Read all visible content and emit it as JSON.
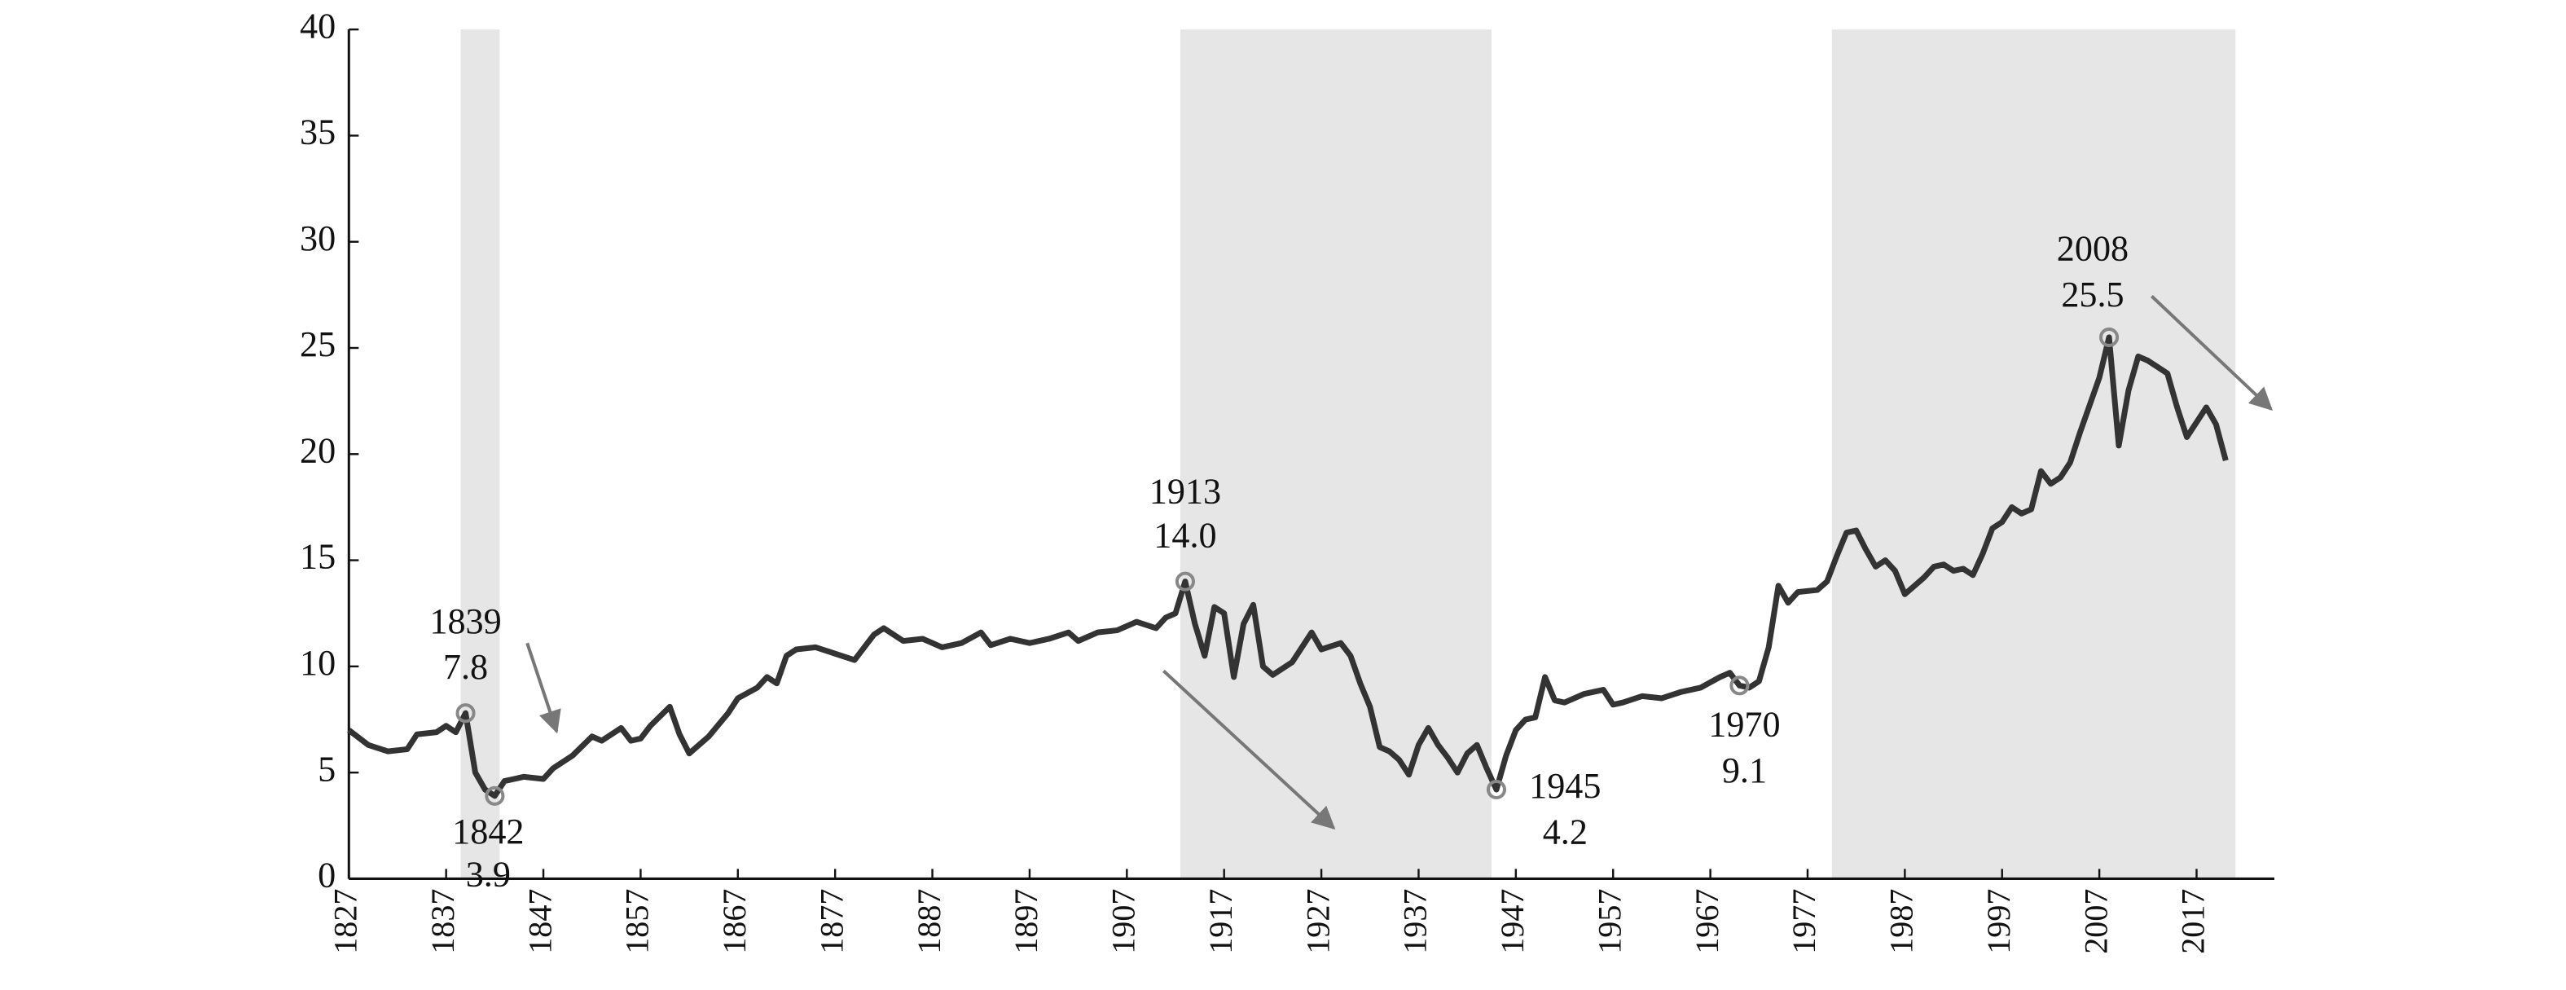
{
  "chart_data": {
    "type": "line",
    "x": [
      1827,
      1829,
      1831,
      1833,
      1834,
      1836,
      1837,
      1838,
      1839,
      1840,
      1841,
      1842,
      1843,
      1845,
      1847,
      1848,
      1850,
      1852,
      1853,
      1855,
      1856,
      1857,
      1858,
      1860,
      1861,
      1862,
      1864,
      1866,
      1867,
      1869,
      1870,
      1871,
      1872,
      1873,
      1875,
      1877,
      1879,
      1881,
      1882,
      1884,
      1886,
      1888,
      1890,
      1892,
      1893,
      1895,
      1897,
      1899,
      1901,
      1902,
      1904,
      1906,
      1908,
      1910,
      1911,
      1912,
      1913,
      1914,
      1915,
      1916,
      1917,
      1918,
      1919,
      1920,
      1921,
      1922,
      1924,
      1926,
      1927,
      1929,
      1930,
      1931,
      1932,
      1933,
      1934,
      1935,
      1936,
      1937,
      1938,
      1939,
      1940,
      1941,
      1942,
      1943,
      1944,
      1945,
      1946,
      1947,
      1948,
      1949,
      1950,
      1951,
      1952,
      1954,
      1956,
      1957,
      1958,
      1960,
      1962,
      1964,
      1966,
      1968,
      1969,
      1970,
      1971,
      1972,
      1973,
      1974,
      1975,
      1976,
      1978,
      1979,
      1980,
      1981,
      1982,
      1983,
      1984,
      1985,
      1986,
      1987,
      1988,
      1989,
      1990,
      1991,
      1992,
      1993,
      1994,
      1995,
      1996,
      1997,
      1998,
      1999,
      2000,
      2001,
      2002,
      2003,
      2004,
      2005,
      2006,
      2007,
      2008,
      2009,
      2010,
      2011,
      2012,
      2013,
      2014,
      2015,
      2016,
      2017,
      2018,
      2019,
      2020
    ],
    "series": [
      {
        "color": "#333333",
        "values": [
          7.0,
          6.3,
          6.0,
          6.1,
          6.8,
          6.9,
          7.2,
          6.9,
          7.8,
          5.0,
          4.2,
          3.9,
          4.6,
          4.8,
          4.7,
          5.2,
          5.8,
          6.7,
          6.5,
          7.1,
          6.5,
          6.6,
          7.2,
          8.1,
          6.8,
          5.9,
          6.7,
          7.8,
          8.5,
          9.0,
          9.5,
          9.2,
          10.5,
          10.8,
          10.9,
          10.6,
          10.3,
          11.5,
          11.8,
          11.2,
          11.3,
          10.9,
          11.1,
          11.6,
          11.0,
          11.3,
          11.1,
          11.3,
          11.6,
          11.2,
          11.6,
          11.7,
          12.1,
          11.8,
          12.3,
          12.5,
          14.0,
          12.0,
          10.5,
          12.8,
          12.5,
          9.5,
          12.0,
          12.9,
          10.0,
          9.6,
          10.2,
          11.6,
          10.8,
          11.1,
          10.5,
          9.2,
          8.1,
          6.2,
          6.0,
          5.6,
          4.9,
          6.3,
          7.1,
          6.3,
          5.7,
          5.0,
          5.9,
          6.3,
          5.2,
          4.2,
          5.8,
          7.0,
          7.5,
          7.6,
          9.5,
          8.4,
          8.3,
          8.7,
          8.9,
          8.2,
          8.3,
          8.6,
          8.5,
          8.8,
          9.0,
          9.5,
          9.7,
          9.1,
          9.0,
          9.3,
          10.9,
          13.8,
          13.0,
          13.5,
          13.6,
          14.0,
          15.2,
          16.3,
          16.4,
          15.5,
          14.7,
          15.0,
          14.5,
          13.4,
          13.8,
          14.2,
          14.7,
          14.8,
          14.5,
          14.6,
          14.3,
          15.3,
          16.5,
          16.8,
          17.5,
          17.2,
          17.4,
          19.2,
          18.6,
          18.9,
          19.6,
          21.0,
          22.3,
          23.6,
          25.5,
          20.4,
          23.0,
          24.6,
          24.4,
          24.1,
          23.8,
          22.2,
          20.8,
          21.5,
          22.2,
          21.4,
          19.7
        ]
      }
    ],
    "xlim": [
      1827,
      2025
    ],
    "xticks": [
      1827,
      1837,
      1847,
      1857,
      1867,
      1877,
      1887,
      1897,
      1907,
      1917,
      1927,
      1937,
      1947,
      1957,
      1967,
      1977,
      1987,
      1997,
      2007,
      2017
    ],
    "ylim": [
      0,
      40
    ],
    "yticks": [
      0,
      5,
      10,
      15,
      20,
      25,
      30,
      35,
      40
    ],
    "shaded_periods": [
      [
        1838.5,
        1842.5
      ],
      [
        1912.5,
        1944.5
      ],
      [
        1979.5,
        2021
      ]
    ],
    "shade_color": "#e6e6e6",
    "annotations": [
      {
        "x": 1839,
        "y": 7.8,
        "labels": [
          "1839",
          "7.8"
        ]
      },
      {
        "x": 1842,
        "y": 3.9,
        "labels": [
          "1842",
          "3.9"
        ]
      },
      {
        "x": 1913,
        "y": 14.0,
        "labels": [
          "1913",
          "14.0"
        ]
      },
      {
        "x": 1945,
        "y": 4.2,
        "labels": [
          "1945",
          "4.2"
        ]
      },
      {
        "x": 1970,
        "y": 9.1,
        "labels": [
          "1970",
          "9.1"
        ]
      },
      {
        "x": 2008,
        "y": 25.5,
        "labels": [
          "2008",
          "25.5"
        ]
      }
    ]
  }
}
